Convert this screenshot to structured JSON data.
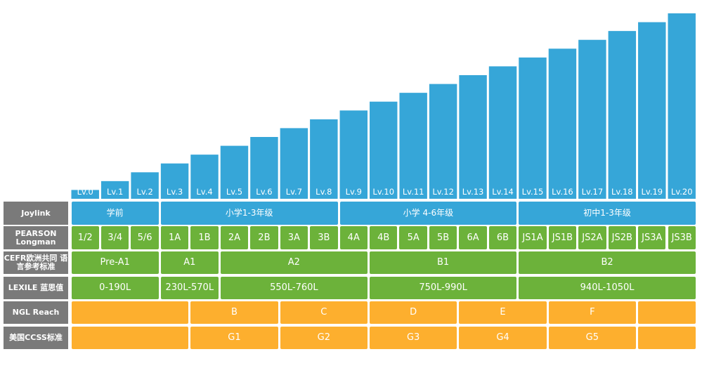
{
  "chart_data": {
    "type": "bar",
    "categories": [
      "Lv.0",
      "Lv.1",
      "Lv.2",
      "Lv.3",
      "Lv.4",
      "Lv.5",
      "Lv.6",
      "Lv.7",
      "Lv.8",
      "Lv.9",
      "Lv.10",
      "Lv.11",
      "Lv.12",
      "Lv.13",
      "Lv.14",
      "Lv.15",
      "Lv.16",
      "Lv.17",
      "Lv.18",
      "Lv.19",
      "Lv.20"
    ],
    "values": [
      1,
      2,
      3,
      4,
      5,
      6,
      7,
      8,
      9,
      10,
      11,
      12,
      13,
      14,
      15,
      16,
      17,
      18,
      19,
      20,
      21
    ],
    "title": "",
    "xlabel": "",
    "ylabel": "",
    "ylim": [
      0,
      21
    ],
    "grid": false,
    "bar_color": "#36a6d8"
  },
  "table": {
    "rows": [
      {
        "header": "Joylink",
        "color": "blue",
        "cells": [
          {
            "label": "学前",
            "start": 0,
            "span": 3
          },
          {
            "label": "小学1-3年级",
            "start": 3,
            "span": 6
          },
          {
            "label": "小学 4-6年级",
            "start": 9,
            "span": 6
          },
          {
            "label": "初中1-3年级",
            "start": 15,
            "span": 6
          }
        ]
      },
      {
        "header": "PEARSON Longman",
        "color": "green",
        "cells": [
          {
            "label": "1/2",
            "start": 0,
            "span": 1
          },
          {
            "label": "3/4",
            "start": 1,
            "span": 1
          },
          {
            "label": "5/6",
            "start": 2,
            "span": 1
          },
          {
            "label": "1A",
            "start": 3,
            "span": 1
          },
          {
            "label": "1B",
            "start": 4,
            "span": 1
          },
          {
            "label": "2A",
            "start": 5,
            "span": 1
          },
          {
            "label": "2B",
            "start": 6,
            "span": 1
          },
          {
            "label": "3A",
            "start": 7,
            "span": 1
          },
          {
            "label": "3B",
            "start": 8,
            "span": 1
          },
          {
            "label": "4A",
            "start": 9,
            "span": 1
          },
          {
            "label": "4B",
            "start": 10,
            "span": 1
          },
          {
            "label": "5A",
            "start": 11,
            "span": 1
          },
          {
            "label": "5B",
            "start": 12,
            "span": 1
          },
          {
            "label": "6A",
            "start": 13,
            "span": 1
          },
          {
            "label": "6B",
            "start": 14,
            "span": 1
          },
          {
            "label": "JS1A",
            "start": 15,
            "span": 1
          },
          {
            "label": "JS1B",
            "start": 16,
            "span": 1
          },
          {
            "label": "JS2A",
            "start": 17,
            "span": 1
          },
          {
            "label": "JS2B",
            "start": 18,
            "span": 1
          },
          {
            "label": "JS3A",
            "start": 19,
            "span": 1
          },
          {
            "label": "JS3B",
            "start": 20,
            "span": 1
          }
        ]
      },
      {
        "header": "CEFR欧洲共同 语言参考标准",
        "color": "green",
        "cells": [
          {
            "label": "Pre-A1",
            "start": 0,
            "span": 3
          },
          {
            "label": "A1",
            "start": 3,
            "span": 2
          },
          {
            "label": "A2",
            "start": 5,
            "span": 5
          },
          {
            "label": "B1",
            "start": 10,
            "span": 5
          },
          {
            "label": "B2",
            "start": 15,
            "span": 6
          }
        ]
      },
      {
        "header": "LEXILE 蓝思值",
        "color": "green",
        "cells": [
          {
            "label": "0-190L",
            "start": 0,
            "span": 3
          },
          {
            "label": "230L-570L",
            "start": 3,
            "span": 2
          },
          {
            "label": "550L-760L",
            "start": 5,
            "span": 5
          },
          {
            "label": "750L-990L",
            "start": 10,
            "span": 5
          },
          {
            "label": "940L-1050L",
            "start": 15,
            "span": 6
          }
        ]
      },
      {
        "header": "NGL Reach",
        "color": "orange",
        "cells": [
          {
            "label": "",
            "start": 0,
            "span": 4
          },
          {
            "label": "B",
            "start": 4,
            "span": 3
          },
          {
            "label": "C",
            "start": 7,
            "span": 3
          },
          {
            "label": "D",
            "start": 10,
            "span": 3
          },
          {
            "label": "E",
            "start": 13,
            "span": 3
          },
          {
            "label": "F",
            "start": 16,
            "span": 3
          },
          {
            "label": "",
            "start": 19,
            "span": 2
          }
        ]
      },
      {
        "header": "美国CCSS标准",
        "color": "orange",
        "cells": [
          {
            "label": "",
            "start": 0,
            "span": 4
          },
          {
            "label": "G1",
            "start": 4,
            "span": 3
          },
          {
            "label": "G2",
            "start": 7,
            "span": 3
          },
          {
            "label": "G3",
            "start": 10,
            "span": 3
          },
          {
            "label": "G4",
            "start": 13,
            "span": 3
          },
          {
            "label": "G5",
            "start": 16,
            "span": 3
          },
          {
            "label": "",
            "start": 19,
            "span": 2
          }
        ]
      }
    ]
  }
}
